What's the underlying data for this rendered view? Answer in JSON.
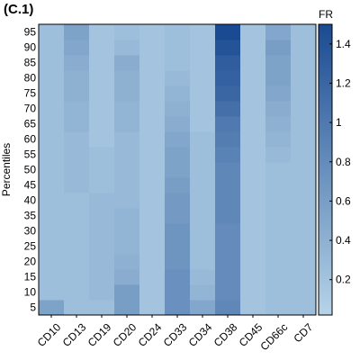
{
  "panel_label": "(C.1)",
  "chart_data": {
    "type": "heatmap",
    "title": "",
    "xlabel": "",
    "ylabel": "Percentiles",
    "x_categories": [
      "CD10",
      "CD13",
      "CD19",
      "CD20",
      "CD24",
      "CD33",
      "CD34",
      "CD38",
      "CD45",
      "CD66c",
      "CD7"
    ],
    "y_categories": [
      5,
      10,
      15,
      20,
      25,
      30,
      35,
      40,
      45,
      50,
      55,
      60,
      65,
      70,
      75,
      80,
      85,
      90,
      95
    ],
    "y_order": "bottom-to-top",
    "colorbar": {
      "label": "FR",
      "min": 0.02,
      "max": 1.5,
      "ticks": [
        0.2,
        0.4,
        0.6,
        0.8,
        1,
        1.2,
        1.4
      ],
      "tick_labels": [
        "0.2",
        "0.4",
        "0.6",
        "0.8",
        "1",
        "1.2",
        "1.4"
      ],
      "color_low": "#b6d4e8",
      "color_high": "#1a4a92"
    },
    "values": [
      [
        0.55,
        0.25,
        0.25,
        0.6,
        0.2,
        0.75,
        0.5,
        0.85,
        0.2,
        0.25,
        0.25
      ],
      [
        0.25,
        0.25,
        0.3,
        0.6,
        0.2,
        0.75,
        0.35,
        0.8,
        0.2,
        0.25,
        0.25
      ],
      [
        0.25,
        0.25,
        0.3,
        0.45,
        0.2,
        0.75,
        0.3,
        0.8,
        0.2,
        0.25,
        0.25
      ],
      [
        0.25,
        0.25,
        0.3,
        0.4,
        0.2,
        0.7,
        0.25,
        0.8,
        0.2,
        0.25,
        0.25
      ],
      [
        0.25,
        0.25,
        0.3,
        0.35,
        0.2,
        0.7,
        0.25,
        0.8,
        0.2,
        0.25,
        0.25
      ],
      [
        0.25,
        0.25,
        0.3,
        0.35,
        0.2,
        0.7,
        0.25,
        0.8,
        0.2,
        0.25,
        0.25
      ],
      [
        0.25,
        0.25,
        0.3,
        0.35,
        0.2,
        0.65,
        0.25,
        0.85,
        0.2,
        0.25,
        0.25
      ],
      [
        0.25,
        0.25,
        0.3,
        0.3,
        0.2,
        0.65,
        0.25,
        0.85,
        0.2,
        0.25,
        0.25
      ],
      [
        0.25,
        0.3,
        0.25,
        0.3,
        0.2,
        0.6,
        0.25,
        0.85,
        0.2,
        0.25,
        0.25
      ],
      [
        0.25,
        0.3,
        0.25,
        0.3,
        0.2,
        0.55,
        0.25,
        0.85,
        0.2,
        0.25,
        0.25
      ],
      [
        0.25,
        0.3,
        0.25,
        0.3,
        0.2,
        0.55,
        0.25,
        0.9,
        0.2,
        0.3,
        0.25
      ],
      [
        0.25,
        0.3,
        0.2,
        0.3,
        0.2,
        0.5,
        0.25,
        0.95,
        0.2,
        0.35,
        0.25
      ],
      [
        0.25,
        0.35,
        0.2,
        0.35,
        0.2,
        0.45,
        0.2,
        1.0,
        0.2,
        0.4,
        0.25
      ],
      [
        0.25,
        0.35,
        0.2,
        0.35,
        0.2,
        0.4,
        0.2,
        1.1,
        0.2,
        0.45,
        0.25
      ],
      [
        0.25,
        0.4,
        0.2,
        0.4,
        0.2,
        0.35,
        0.2,
        1.2,
        0.2,
        0.5,
        0.25
      ],
      [
        0.25,
        0.4,
        0.2,
        0.4,
        0.2,
        0.3,
        0.2,
        1.25,
        0.2,
        0.55,
        0.25
      ],
      [
        0.25,
        0.45,
        0.2,
        0.45,
        0.2,
        0.25,
        0.2,
        1.3,
        0.2,
        0.55,
        0.25
      ],
      [
        0.25,
        0.5,
        0.2,
        0.3,
        0.2,
        0.25,
        0.2,
        1.4,
        0.2,
        0.6,
        0.25
      ],
      [
        0.25,
        0.55,
        0.2,
        0.25,
        0.2,
        0.25,
        0.2,
        1.5,
        0.2,
        0.5,
        0.25
      ]
    ]
  }
}
